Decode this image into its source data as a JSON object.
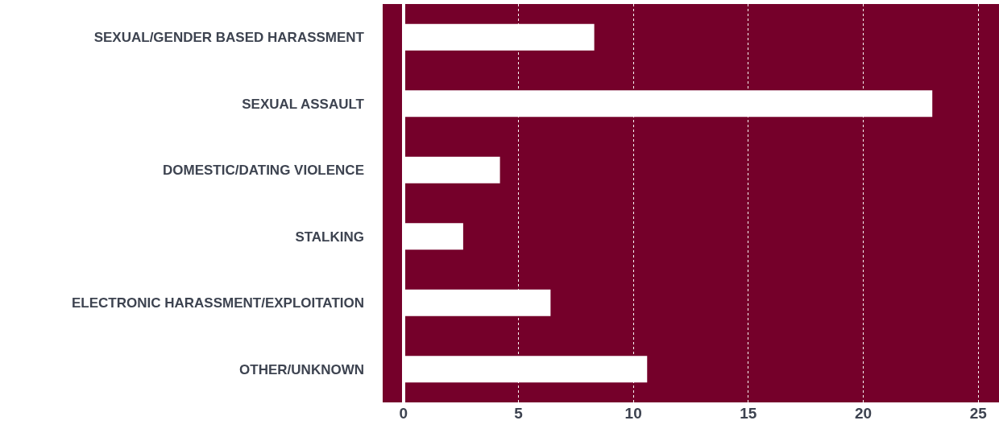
{
  "chart_data": {
    "type": "bar",
    "orientation": "horizontal",
    "categories": [
      "SEXUAL/GENDER BASED HARASSMENT",
      "SEXUAL ASSAULT",
      "DOMESTIC/DATING VIOLENCE",
      "STALKING",
      "ELECTRONIC HARASSMENT/EXPLOITATION",
      "OTHER/UNKNOWN"
    ],
    "values": [
      8.3,
      23.0,
      4.2,
      2.6,
      6.4,
      10.6
    ],
    "color": "#ffffff",
    "xlim": [
      -0.9,
      25.9
    ],
    "xticks": [
      0,
      5,
      10,
      15,
      20,
      25
    ],
    "grid": "x"
  }
}
